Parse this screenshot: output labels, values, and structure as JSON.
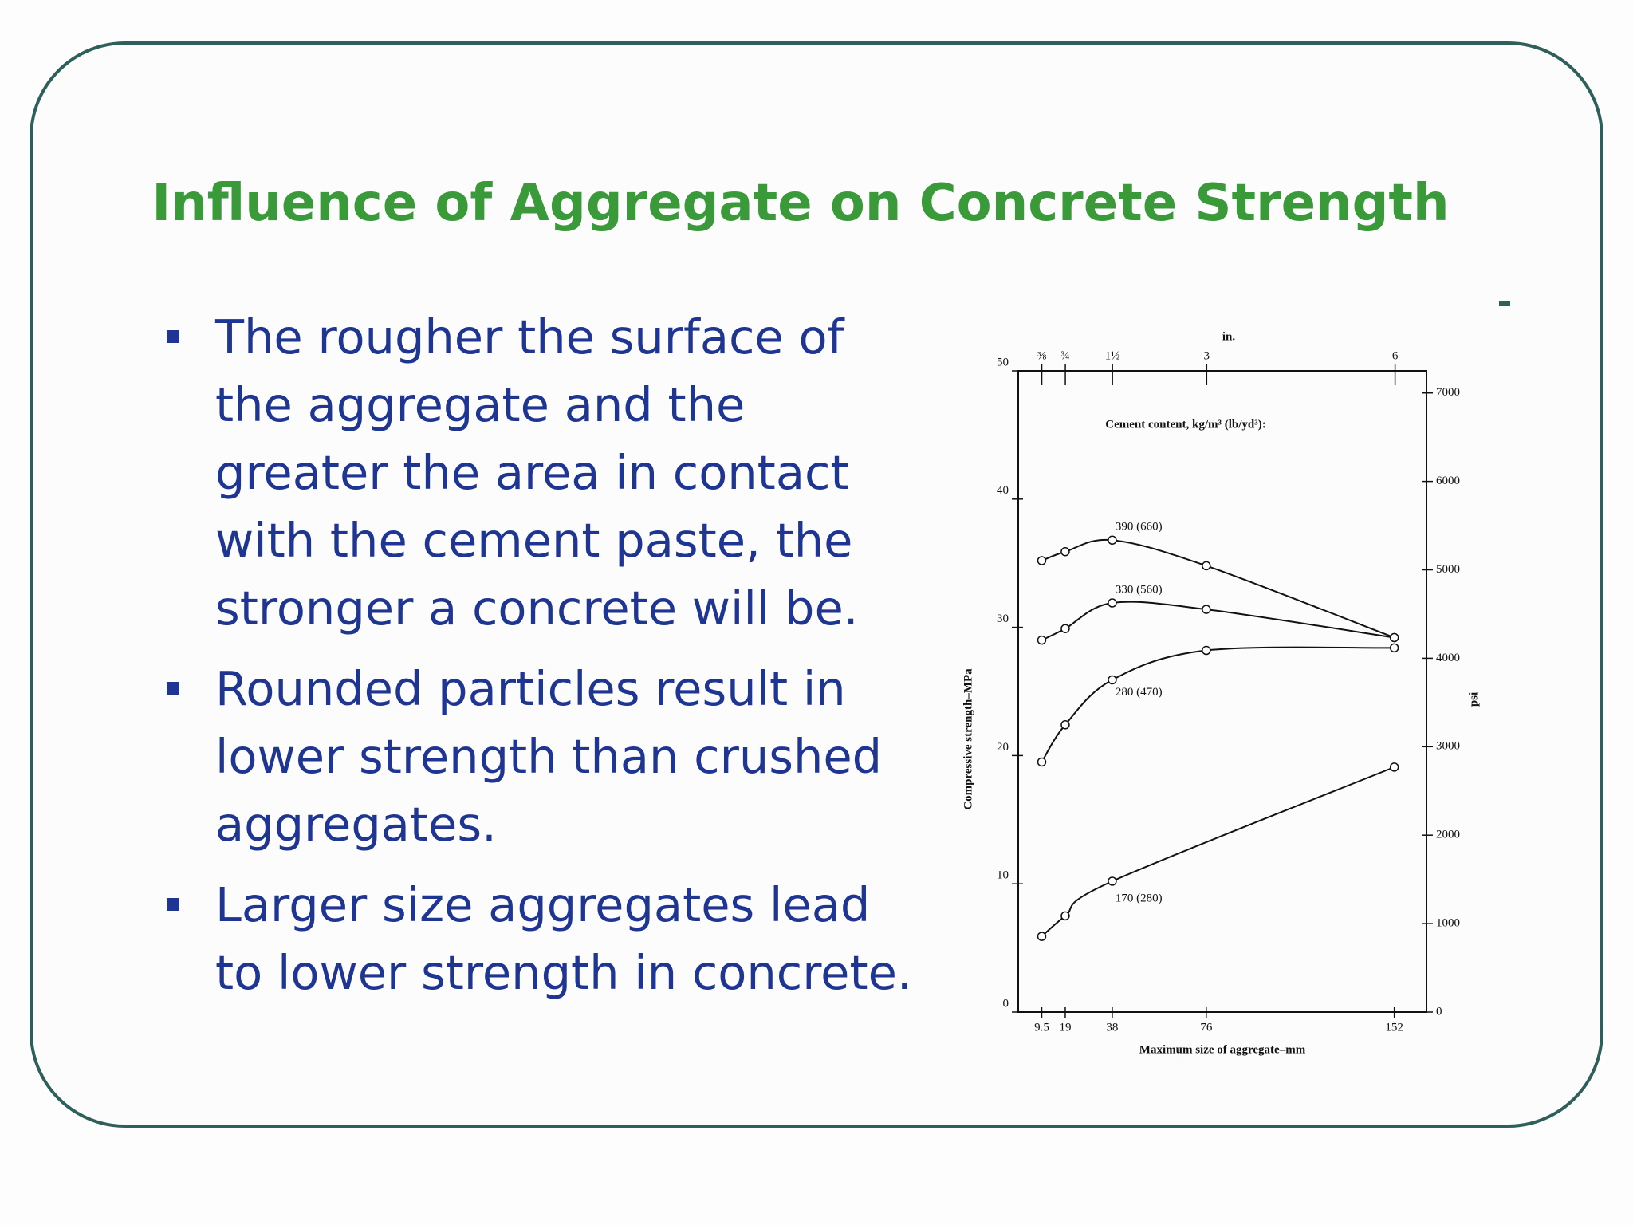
{
  "title": "Influence of Aggregate on Concrete Strength",
  "bullets": [
    "The rougher the surface of the aggregate and the greater the area in contact with the cement paste, the stronger a concrete will be.",
    "Rounded particles result in lower strength than crushed aggregates.",
    "Larger size aggregates lead to lower strength in concrete."
  ],
  "chart_data": {
    "type": "line",
    "legend_title": "Cement content, kg/m³ (lb/yd³):",
    "xlabel": "Maximum size of aggregate–mm",
    "x2label": "in.",
    "ylabel": "Compressive strength–MPa",
    "y2label": "psi",
    "xlim": [
      0,
      165
    ],
    "xticks": [
      9.5,
      19,
      38,
      76,
      152
    ],
    "x2lim": [
      0,
      6.5
    ],
    "x2ticks": [
      {
        "value": 0.375,
        "label": "⅜"
      },
      {
        "value": 0.75,
        "label": "¾"
      },
      {
        "value": 1.5,
        "label": "1½"
      },
      3,
      6
    ],
    "ylim": [
      0,
      50
    ],
    "yticks": [
      0,
      10,
      20,
      30,
      40,
      50
    ],
    "y2lim": [
      0,
      7250
    ],
    "y2ticks": [
      0,
      1000,
      2000,
      3000,
      4000,
      5000,
      6000,
      7000
    ],
    "series": [
      {
        "name": "390 (660)",
        "color": "#111111",
        "x": [
          9.5,
          19,
          38,
          76,
          152
        ],
        "values": [
          35.2,
          35.9,
          36.8,
          34.8,
          29.2
        ]
      },
      {
        "name": "330 (560)",
        "color": "#111111",
        "x": [
          9.5,
          19,
          38,
          76,
          152
        ],
        "values": [
          29.0,
          29.9,
          31.9,
          31.4,
          29.2
        ]
      },
      {
        "name": "280 (470)",
        "color": "#111111",
        "x": [
          9.5,
          19,
          38,
          76,
          152
        ],
        "values": [
          19.5,
          22.4,
          25.9,
          28.2,
          28.4
        ]
      },
      {
        "name": "170 (280)",
        "color": "#111111",
        "x": [
          9.5,
          19,
          38,
          152
        ],
        "values": [
          5.9,
          7.5,
          10.2,
          19.1
        ]
      }
    ]
  }
}
